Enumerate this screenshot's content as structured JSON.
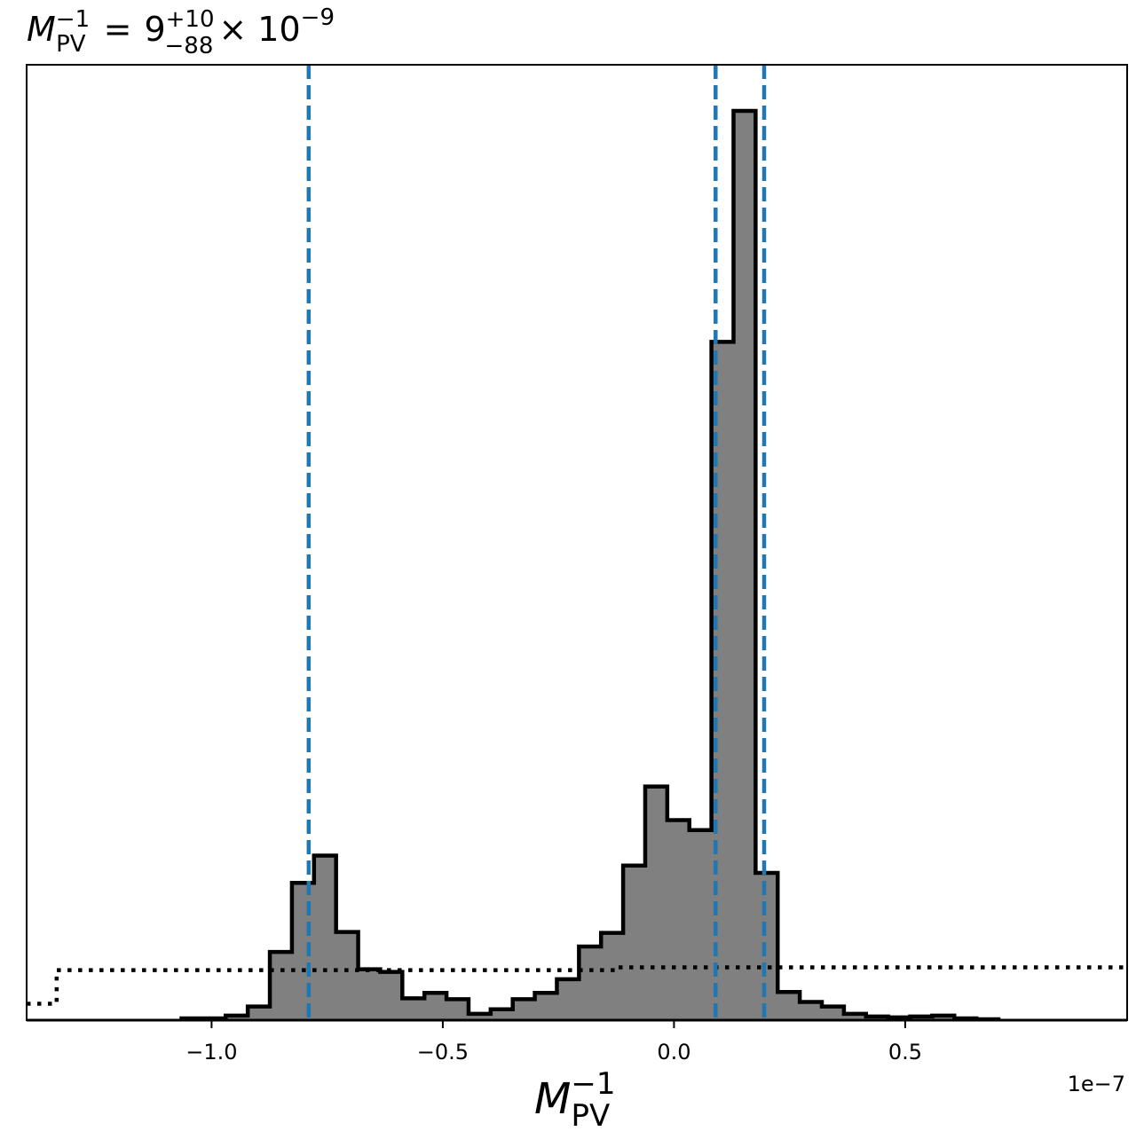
{
  "chart_data": {
    "type": "histogram",
    "title": {
      "symbol": "M",
      "subscript": "PV",
      "superscript": "−1",
      "equals": "=",
      "value": "9",
      "upper": "+10",
      "lower": "−88",
      "times": "× 10",
      "exponent": "−9"
    },
    "xlabel": {
      "symbol": "M",
      "subscript": "PV",
      "superscript": "−1"
    },
    "x_offset_label": "1e−7",
    "x_scale": 1e-07,
    "xlim": [
      -1.4,
      0.98
    ],
    "ylim": [
      0,
      1.0
    ],
    "xticks": [
      {
        "value": -1.0,
        "label": "−1.0"
      },
      {
        "value": -0.5,
        "label": "−0.5"
      },
      {
        "value": 0.0,
        "label": "0.0"
      },
      {
        "value": 0.5,
        "label": "0.5"
      }
    ],
    "grid": false,
    "bin_start": -1.065,
    "bin_width": 0.04775,
    "bin_heights": [
      0.002,
      0.002,
      0.005,
      0.015,
      0.075,
      0.151,
      0.181,
      0.097,
      0.056,
      0.053,
      0.024,
      0.03,
      0.023,
      0.007,
      0.012,
      0.023,
      0.03,
      0.045,
      0.081,
      0.096,
      0.17,
      0.257,
      0.22,
      0.209,
      0.746,
      1.0,
      0.162,
      0.031,
      0.02,
      0.015,
      0.007,
      0.004,
      0.003,
      0.004,
      0.005,
      0.002,
      0.001
    ],
    "prior": {
      "style": "dotted",
      "steps": [
        {
          "x0": -1.4,
          "x1": -1.335,
          "y": 0.018
        },
        {
          "x0": -1.335,
          "x1": -0.12,
          "y": 0.055
        },
        {
          "x0": -0.12,
          "x1": 0.98,
          "y": 0.058
        }
      ]
    },
    "vlines": {
      "color": "#1f77b4",
      "style": "dashed",
      "values": [
        -0.79,
        0.09,
        0.195
      ]
    },
    "colors": {
      "fill": "#808080",
      "edge": "#000000",
      "prior": "#000000"
    }
  }
}
